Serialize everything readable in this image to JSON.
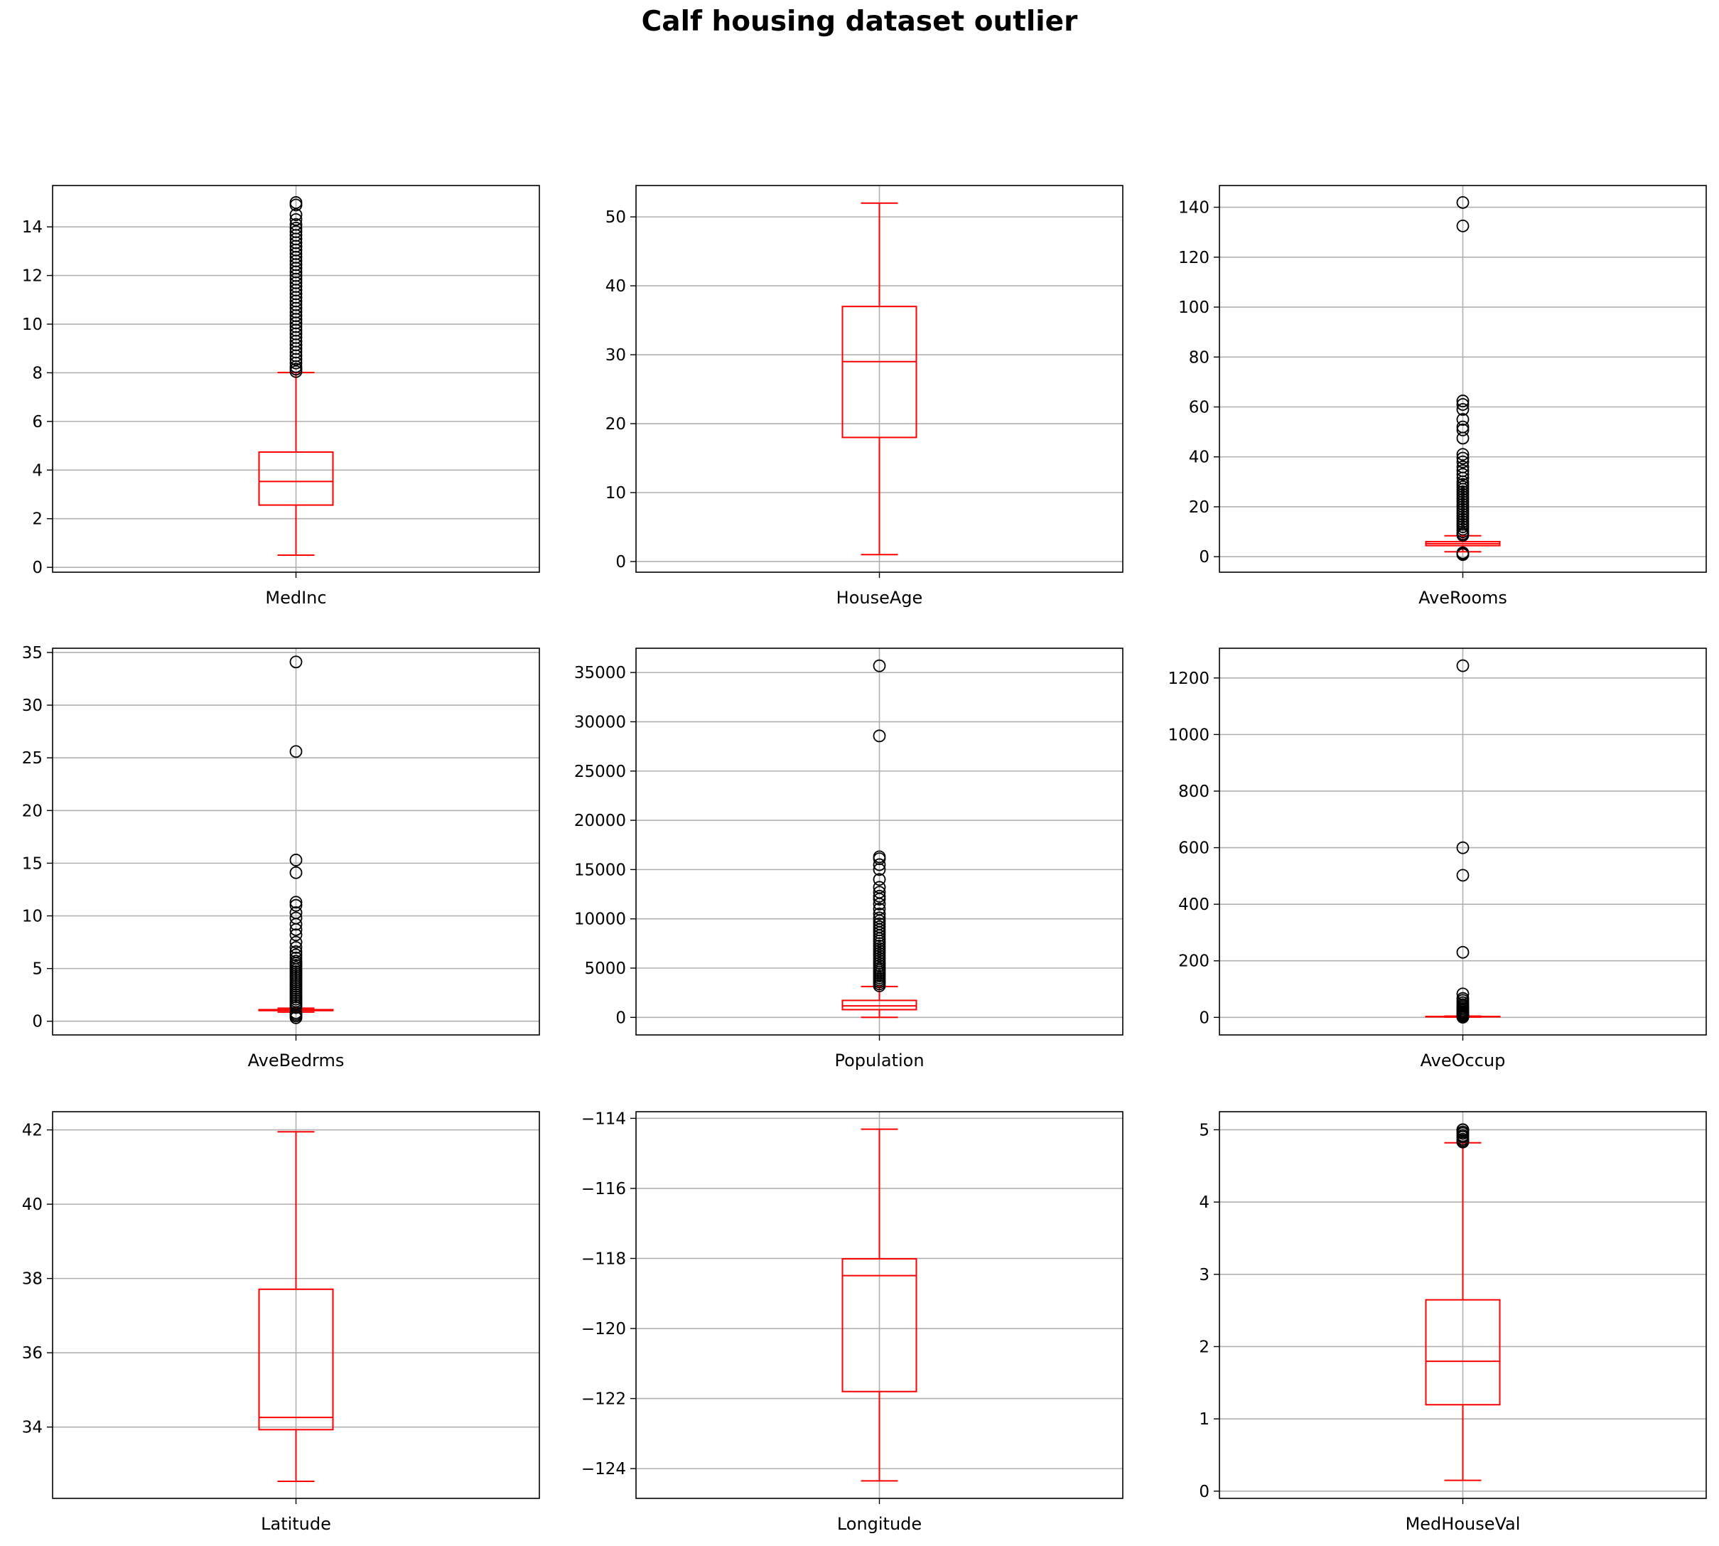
{
  "title": "Calf housing dataset outlier",
  "colors": {
    "box": "#ff0000",
    "grid": "#b0b0b0",
    "flier": "#000000",
    "axes": "#000000"
  },
  "chart_data": [
    {
      "type": "box",
      "category": "MedInc",
      "grid": true,
      "ylim": [
        -0.2,
        15.7
      ],
      "yticks": [
        0,
        2,
        4,
        6,
        8,
        10,
        12,
        14
      ],
      "tick_labels": [
        "0",
        "2",
        "4",
        "6",
        "8",
        "10",
        "12",
        "14"
      ],
      "box": {
        "whislo": 0.5,
        "q1": 2.56,
        "med": 3.53,
        "q3": 4.74,
        "whishi": 8.01
      },
      "fliers": [
        8.05,
        8.15,
        8.25,
        8.4,
        8.55,
        8.7,
        8.85,
        9.0,
        9.15,
        9.3,
        9.45,
        9.6,
        9.75,
        9.9,
        10.05,
        10.2,
        10.35,
        10.5,
        10.65,
        10.8,
        10.95,
        11.1,
        11.25,
        11.4,
        11.55,
        11.7,
        11.85,
        12.0,
        12.15,
        12.3,
        12.45,
        12.6,
        12.75,
        12.9,
        13.05,
        13.2,
        13.35,
        13.5,
        13.65,
        13.8,
        13.95,
        14.1,
        14.3,
        14.5,
        14.9,
        15.0
      ]
    },
    {
      "type": "box",
      "category": "HouseAge",
      "grid": true,
      "ylim": [
        -1.55,
        54.55
      ],
      "yticks": [
        0,
        10,
        20,
        30,
        40,
        50
      ],
      "tick_labels": [
        "0",
        "10",
        "20",
        "30",
        "40",
        "50"
      ],
      "box": {
        "whislo": 1,
        "q1": 18,
        "med": 29,
        "q3": 37,
        "whishi": 52
      },
      "fliers": []
    },
    {
      "type": "box",
      "category": "AveRooms",
      "grid": true,
      "ylim": [
        -6.2,
        148.7
      ],
      "yticks": [
        0,
        20,
        40,
        60,
        80,
        100,
        120,
        140
      ],
      "tick_labels": [
        "0",
        "20",
        "40",
        "60",
        "80",
        "100",
        "120",
        "140"
      ],
      "box": {
        "whislo": 2.0,
        "q1": 4.44,
        "med": 5.23,
        "q3": 6.05,
        "whishi": 8.4
      },
      "fliers": [
        0.85,
        1.2,
        1.6,
        8.6,
        9.2,
        10.0,
        11.0,
        12.0,
        13.0,
        14.0,
        15.0,
        16.0,
        17.0,
        18.0,
        19.0,
        20.0,
        21.0,
        22.0,
        23.0,
        24.0,
        25.0,
        26.0,
        27.0,
        28.0,
        29.0,
        30.0,
        31.5,
        33.0,
        34.5,
        36.0,
        38.0,
        39.5,
        41.0,
        47.5,
        50.8,
        52.0,
        55.0,
        59.0,
        61.0,
        62.4,
        132.5,
        141.9
      ]
    },
    {
      "type": "box",
      "category": "AveBedrms",
      "grid": true,
      "ylim": [
        -1.3,
        35.4
      ],
      "yticks": [
        0,
        5,
        10,
        15,
        20,
        25,
        30,
        35
      ],
      "tick_labels": [
        "0",
        "5",
        "10",
        "15",
        "20",
        "25",
        "30",
        "35"
      ],
      "box": {
        "whislo": 0.87,
        "q1": 1.01,
        "med": 1.05,
        "q3": 1.1,
        "whishi": 1.24
      },
      "fliers": [
        0.33,
        0.5,
        0.65,
        0.8,
        1.3,
        1.5,
        1.7,
        1.9,
        2.1,
        2.3,
        2.5,
        2.7,
        2.9,
        3.1,
        3.3,
        3.5,
        3.7,
        3.9,
        4.1,
        4.3,
        4.5,
        4.7,
        4.9,
        5.1,
        5.3,
        5.5,
        5.7,
        6.0,
        6.3,
        6.6,
        7.0,
        7.5,
        8.2,
        8.7,
        9.2,
        9.8,
        10.3,
        11.0,
        11.3,
        14.1,
        15.3,
        25.6,
        34.1
      ]
    },
    {
      "type": "box",
      "category": "Population",
      "grid": true,
      "ylim": [
        -1780,
        37462
      ],
      "yticks": [
        0,
        5000,
        10000,
        15000,
        20000,
        25000,
        30000,
        35000
      ],
      "tick_labels": [
        "0",
        "5000",
        "10000",
        "15000",
        "20000",
        "25000",
        "30000",
        "35000"
      ],
      "box": {
        "whislo": 3,
        "q1": 787,
        "med": 1166,
        "q3": 1725,
        "whishi": 3132
      },
      "fliers": [
        3200,
        3400,
        3600,
        3800,
        4000,
        4200,
        4400,
        4600,
        4800,
        5000,
        5250,
        5500,
        5750,
        6000,
        6250,
        6500,
        6750,
        7000,
        7250,
        7500,
        7750,
        8000,
        8300,
        8600,
        8900,
        9200,
        9500,
        9800,
        10100,
        10500,
        11000,
        11500,
        12000,
        12300,
        12700,
        13200,
        14000,
        15000,
        15500,
        16100,
        16300,
        28566,
        35682
      ]
    },
    {
      "type": "box",
      "category": "AveOccup",
      "grid": true,
      "ylim": [
        -62,
        1305
      ],
      "yticks": [
        0,
        200,
        400,
        600,
        800,
        1000,
        1200
      ],
      "tick_labels": [
        "0",
        "200",
        "400",
        "600",
        "800",
        "1000",
        "1200"
      ],
      "box": {
        "whislo": 1.16,
        "q1": 2.43,
        "med": 2.82,
        "q3": 3.28,
        "whishi": 4.56
      },
      "fliers": [
        0.7,
        5.0,
        6.0,
        8.0,
        10.0,
        13.0,
        16.0,
        20.0,
        25.0,
        30.0,
        35.0,
        40.0,
        45.0,
        52.0,
        60.0,
        67.0,
        83.2,
        230.2,
        502.5,
        599.7,
        1243.3
      ]
    },
    {
      "type": "box",
      "category": "Latitude",
      "grid": true,
      "ylim": [
        32.08,
        42.49
      ],
      "yticks": [
        34,
        36,
        38,
        40,
        42
      ],
      "tick_labels": [
        "34",
        "36",
        "38",
        "40",
        "42"
      ],
      "box": {
        "whislo": 32.54,
        "q1": 33.93,
        "med": 34.26,
        "q3": 37.71,
        "whishi": 41.95
      },
      "fliers": []
    },
    {
      "type": "box",
      "category": "Longitude",
      "grid": true,
      "ylim": [
        -124.85,
        -113.81
      ],
      "yticks": [
        -124,
        -122,
        -120,
        -118,
        -116,
        -114
      ],
      "tick_labels": [
        "−124",
        "−122",
        "−120",
        "−118",
        "−116",
        "−114"
      ],
      "box": {
        "whislo": -124.35,
        "q1": -121.8,
        "med": -118.49,
        "q3": -118.01,
        "whishi": -114.31
      },
      "fliers": []
    },
    {
      "type": "box",
      "category": "MedHouseVal",
      "grid": true,
      "ylim": [
        -0.1,
        5.25
      ],
      "yticks": [
        0,
        1,
        2,
        3,
        4,
        5
      ],
      "tick_labels": [
        "0",
        "1",
        "2",
        "3",
        "4",
        "5"
      ],
      "box": {
        "whislo": 0.15,
        "q1": 1.196,
        "med": 1.797,
        "q3": 2.647,
        "whishi": 4.82
      },
      "fliers": [
        4.83,
        4.85,
        4.87,
        4.9,
        4.92,
        4.95,
        4.97,
        5.0,
        5.0,
        5.0
      ]
    }
  ]
}
